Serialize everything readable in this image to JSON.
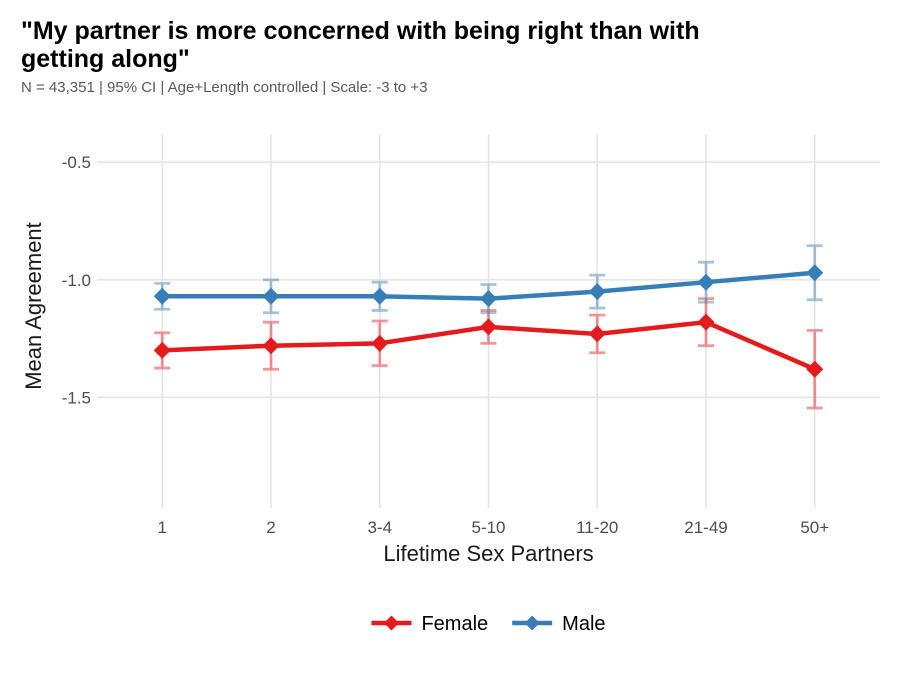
{
  "header": {
    "title": "\"My partner is more concerned with being right than with getting along\"",
    "subtitle": "N = 43,351 | 95% CI | Age+Length controlled | Scale: -3 to +3"
  },
  "chart_data": {
    "type": "line",
    "title": "\"My partner is more concerned with being right than with getting along\"",
    "subtitle": "N = 43,351 | 95% CI | Age+Length controlled | Scale: -3 to +3",
    "xlabel": "Lifetime Sex Partners",
    "ylabel": "Mean Agreement",
    "categories": [
      "1",
      "2",
      "3-4",
      "5-10",
      "11-20",
      "21-49",
      "50+"
    ],
    "series": [
      {
        "name": "Female",
        "color": "#E41A1C",
        "values": [
          -1.3,
          -1.28,
          -1.27,
          -1.2,
          -1.23,
          -1.18,
          -1.38
        ],
        "ci_half_width": [
          0.075,
          0.1,
          0.095,
          0.07,
          0.08,
          0.1,
          0.165
        ]
      },
      {
        "name": "Male",
        "color": "#377EB8",
        "values": [
          -1.07,
          -1.07,
          -1.07,
          -1.08,
          -1.05,
          -1.01,
          -0.97
        ],
        "ci_half_width": [
          0.055,
          0.07,
          0.06,
          0.06,
          0.07,
          0.085,
          0.115
        ]
      }
    ],
    "error_bars": "95% CI",
    "marker": "diamond",
    "ylim": [
      -1.97,
      -0.38
    ],
    "yticks": [
      -0.5,
      -1.0,
      -1.5
    ],
    "ytick_labels": [
      "-0.5",
      "-1.0",
      "-1.5"
    ],
    "grid": "major only, light gray, no axis lines",
    "legend_position": "bottom-center"
  },
  "colors": {
    "background": "#FFFFFF",
    "gridline": "#E5E5E5",
    "tick_label": "#4D4D4D",
    "axis_title": "#1A1A1A",
    "title_text": "#000000",
    "subtitle_text": "#595959",
    "female": "#E41A1C",
    "male": "#377EB8"
  },
  "style": {
    "ci_opacity": 0.45
  }
}
